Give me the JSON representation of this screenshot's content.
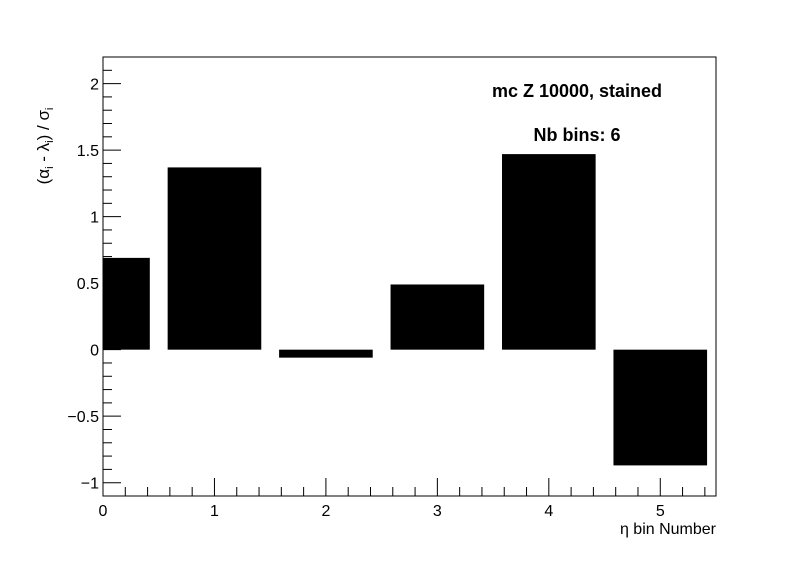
{
  "chart_data": {
    "type": "bar",
    "x": [
      0,
      1,
      2,
      3,
      4,
      5
    ],
    "bar_width": 0.84,
    "values": [
      0.69,
      1.37,
      -0.06,
      0.49,
      1.47,
      -0.87
    ],
    "xlim": [
      0,
      5.5
    ],
    "ylim": [
      -1.1,
      2.2
    ],
    "xticks": [
      0,
      1,
      2,
      3,
      4,
      5
    ],
    "xtick_labels": [
      "0",
      "1",
      "2",
      "3",
      "4",
      "5"
    ],
    "yticks": [
      -1,
      -0.5,
      0,
      0.5,
      1,
      1.5,
      2
    ],
    "ytick_labels": [
      "−1",
      "−0.5",
      "0",
      "0.5",
      "1",
      "1.5",
      "2"
    ],
    "xlabel": "η bin Number",
    "ylabel": {
      "part_open": "(α",
      "sub_i1": "i",
      "part_mid": " - λ",
      "sub_i2": "i",
      "part_close": ") / σ",
      "sub_i3": "i"
    },
    "annotations": {
      "line1": "mc Z 10000, stained",
      "line2": "Nb bins: 6"
    },
    "grid": false,
    "bar_color": "#000000",
    "axis_color": "#000000",
    "background": "#ffffff"
  }
}
